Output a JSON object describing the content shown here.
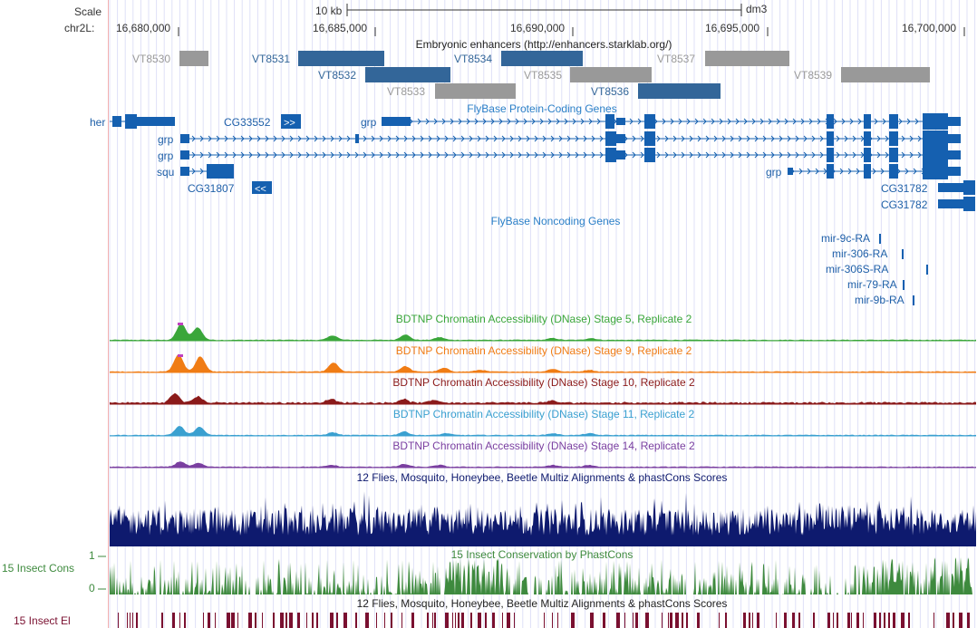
{
  "ruler": {
    "scale_label": "Scale",
    "chrom_label": "chr2L:",
    "scale_bar_label": "10 kb",
    "assembly": "dm3",
    "positions": [
      "16,680,000",
      "16,685,000",
      "16,690,000",
      "16,695,000",
      "16,700,000"
    ]
  },
  "tracks": {
    "enhancers": {
      "title": "Embryonic enhancers (http://enhancers.starklab.org/)",
      "items": [
        {
          "label": "VT8530",
          "color": "gray"
        },
        {
          "label": "VT8531",
          "color": "blue"
        },
        {
          "label": "VT8532",
          "color": "blue"
        },
        {
          "label": "VT8533",
          "color": "gray"
        },
        {
          "label": "VT8534",
          "color": "blue"
        },
        {
          "label": "VT8535",
          "color": "gray"
        },
        {
          "label": "VT8536",
          "color": "blue"
        },
        {
          "label": "VT8537",
          "color": "gray"
        },
        {
          "label": "VT8539",
          "color": "gray"
        }
      ]
    },
    "protein_coding": {
      "title": "FlyBase Protein-Coding Genes",
      "genes": [
        "her",
        "CG33552",
        "grp",
        "grp",
        "grp",
        "squ",
        "CG31807",
        "grp",
        "CG31782",
        "CG31782"
      ]
    },
    "noncoding": {
      "title": "FlyBase Noncoding Genes",
      "genes": [
        "mir-9c-RA",
        "mir-306-RA",
        "mir-306S-RA",
        "mir-79-RA",
        "mir-9b-RA"
      ]
    },
    "dnase": [
      {
        "title": "BDTNP Chromatin Accessibility (DNase) Stage 5, Replicate 2",
        "color": "#3aa63a"
      },
      {
        "title": "BDTNP Chromatin Accessibility (DNase) Stage 9, Replicate 2",
        "color": "#f07c14"
      },
      {
        "title": "BDTNP Chromatin Accessibility (DNase) Stage 10, Replicate 2",
        "color": "#8b1a1a"
      },
      {
        "title": "BDTNP Chromatin Accessibility (DNase) Stage 11, Replicate 2",
        "color": "#3aa0d0"
      },
      {
        "title": "BDTNP Chromatin Accessibility (DNase) Stage 14, Replicate 2",
        "color": "#7a3fa0"
      }
    ],
    "multiz": {
      "title": "12 Flies, Mosquito, Honeybee, Beetle Multiz Alignments & phastCons Scores",
      "color": "#0e1a6e"
    },
    "phastcons": {
      "title": "15 Insect Conservation by PhastCons",
      "side_label": "15 Insect Cons",
      "ymax": "1",
      "ymin": "0",
      "color": "#3e8a3e"
    },
    "elements": {
      "title": "12 Flies, Mosquito, Honeybee, Beetle Multiz Alignments & phastCons Scores",
      "side_label": "15 Insect El",
      "color": "#7a1030"
    }
  },
  "colors": {
    "enh_blue": "#336699",
    "enh_gray": "#999999",
    "gene_blue": "#1560b0",
    "title_blue": "#2a7fc7",
    "phast_green": "#3e8a3e"
  }
}
